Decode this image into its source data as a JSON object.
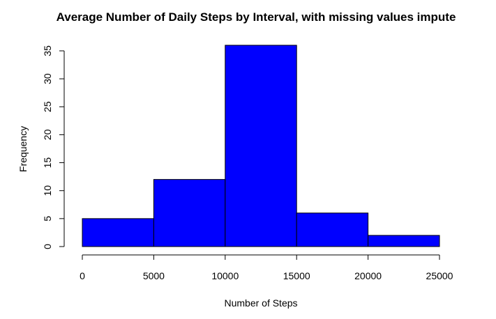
{
  "chart_data": {
    "type": "bar",
    "title": "Average Number of Daily Steps by Interval, with  missing values impute",
    "xlabel": "Number of Steps",
    "ylabel": "Frequency",
    "bins": [
      {
        "start": 0,
        "end": 5000,
        "count": 5
      },
      {
        "start": 5000,
        "end": 10000,
        "count": 12
      },
      {
        "start": 10000,
        "end": 15000,
        "count": 36
      },
      {
        "start": 15000,
        "end": 20000,
        "count": 6
      },
      {
        "start": 20000,
        "end": 25000,
        "count": 2
      }
    ],
    "xlim": [
      0,
      25000
    ],
    "ylim": [
      0,
      35
    ],
    "xticks": [
      "0",
      "5000",
      "10000",
      "15000",
      "20000",
      "25000"
    ],
    "yticks": [
      "0",
      "5",
      "10",
      "15",
      "20",
      "25",
      "30",
      "35"
    ],
    "grid": false,
    "bar_color": "#0000ff",
    "border_color": "#000000"
  }
}
